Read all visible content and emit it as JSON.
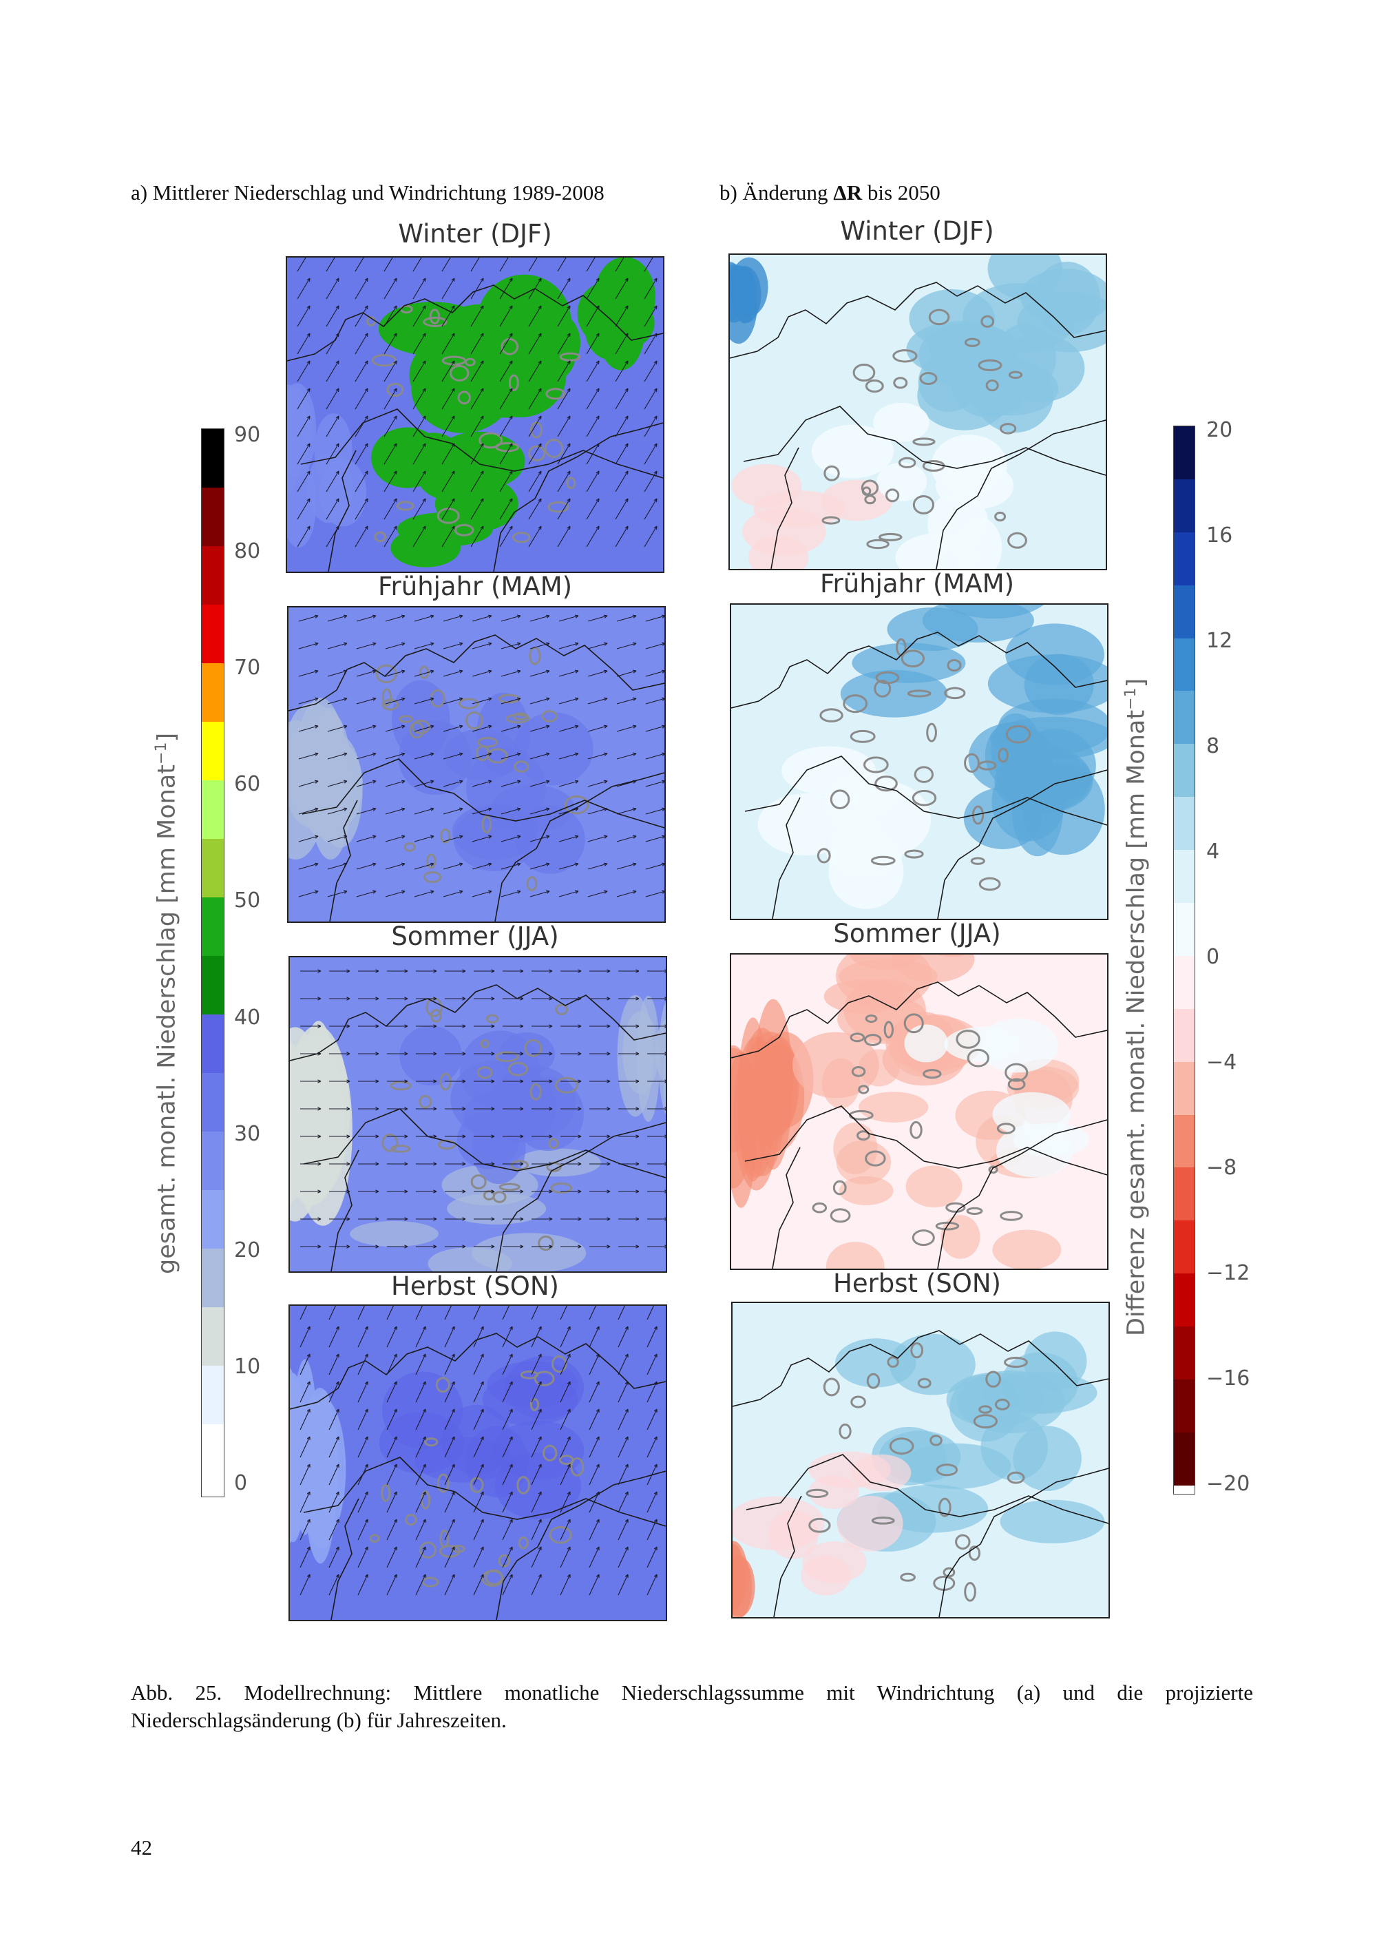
{
  "heading_a": "a) Mittlerer Niederschlag und Windrichtung 1989-2008",
  "heading_b_pre": "b) Änderung ",
  "heading_b_bold": "ΔR",
  "heading_b_post": " bis 2050",
  "panels_a": [
    {
      "title": "Winter (DJF)"
    },
    {
      "title": "Frühjahr (MAM)"
    },
    {
      "title": "Sommer (JJA)"
    },
    {
      "title": "Herbst (SON)"
    }
  ],
  "panels_b": [
    {
      "title": "Winter (DJF)"
    },
    {
      "title": "Frühjahr (MAM)"
    },
    {
      "title": "Sommer (JJA)"
    },
    {
      "title": "Herbst (SON)"
    }
  ],
  "colorbar_a": {
    "label": "gesamt. monatl. Niederschlag [mm Monat",
    "label_sup": "−1",
    "label_end": "]",
    "ticks": [
      "90",
      "80",
      "70",
      "60",
      "50",
      "40",
      "30",
      "20",
      "10",
      "0"
    ],
    "colors": [
      "#000000",
      "#7f0000",
      "#bb0000",
      "#e60000",
      "#ff9900",
      "#ffff00",
      "#b2ff66",
      "#9acd32",
      "#1aaa1a",
      "#0a8a0a",
      "#5c64e6",
      "#6a79ea",
      "#7b8cef",
      "#8fa5f4",
      "#aabbdd",
      "#d7dfdc",
      "#e9f2ff",
      "#ffffff"
    ]
  },
  "colorbar_b": {
    "label": "Differenz gesamt. monatl. Niederschlag [mm Monat",
    "label_sup": "−1",
    "label_end": "]",
    "ticks": [
      "20",
      "16",
      "12",
      "8",
      "4",
      "0",
      "−4",
      "−8",
      "−12",
      "−16",
      "−20"
    ],
    "colors": [
      "#08104e",
      "#0d2a8a",
      "#173eb0",
      "#2164c0",
      "#3a8cd0",
      "#5ba8d8",
      "#88c6e2",
      "#b8e0f0",
      "#def2fa",
      "#f2fbff",
      "#fff0f3",
      "#fdd9dc",
      "#f9b7a8",
      "#f38a70",
      "#ec5a44",
      "#e22a1c",
      "#c20000",
      "#9a0000",
      "#760000",
      "#5a0000"
    ]
  },
  "caption": "Abb. 25. Modellrechnung: Mittlere monatliche Niederschlagssumme mit Windrichtung (a) und die projizierte Niederschlagsänderung (b) für Jahreszeiten.",
  "page_number": "42"
}
